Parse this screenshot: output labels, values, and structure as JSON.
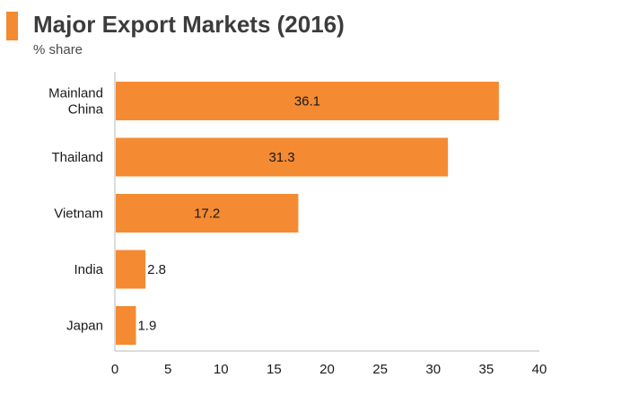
{
  "header": {
    "title": "Major Export Markets (2016)",
    "subtitle": "% share"
  },
  "colors": {
    "bar": "#f48a32",
    "accent": "#f48a32",
    "axis": "#b8b8b8"
  },
  "chart_data": {
    "type": "bar",
    "orientation": "horizontal",
    "title": "Major Export Markets (2016)",
    "subtitle": "% share",
    "categories": [
      [
        "Mainland",
        "China"
      ],
      [
        "Thailand"
      ],
      [
        "Vietnam"
      ],
      [
        "India"
      ],
      [
        "Japan"
      ]
    ],
    "values": [
      36.1,
      31.3,
      17.2,
      2.8,
      1.9
    ],
    "data_labels": [
      "36.1",
      "31.3",
      "17.2",
      "2.8",
      "1.9"
    ],
    "xlim": [
      0,
      40
    ],
    "x_ticks": [
      0,
      5,
      10,
      15,
      20,
      25,
      30,
      35,
      40
    ],
    "grid": false,
    "legend": "none"
  }
}
